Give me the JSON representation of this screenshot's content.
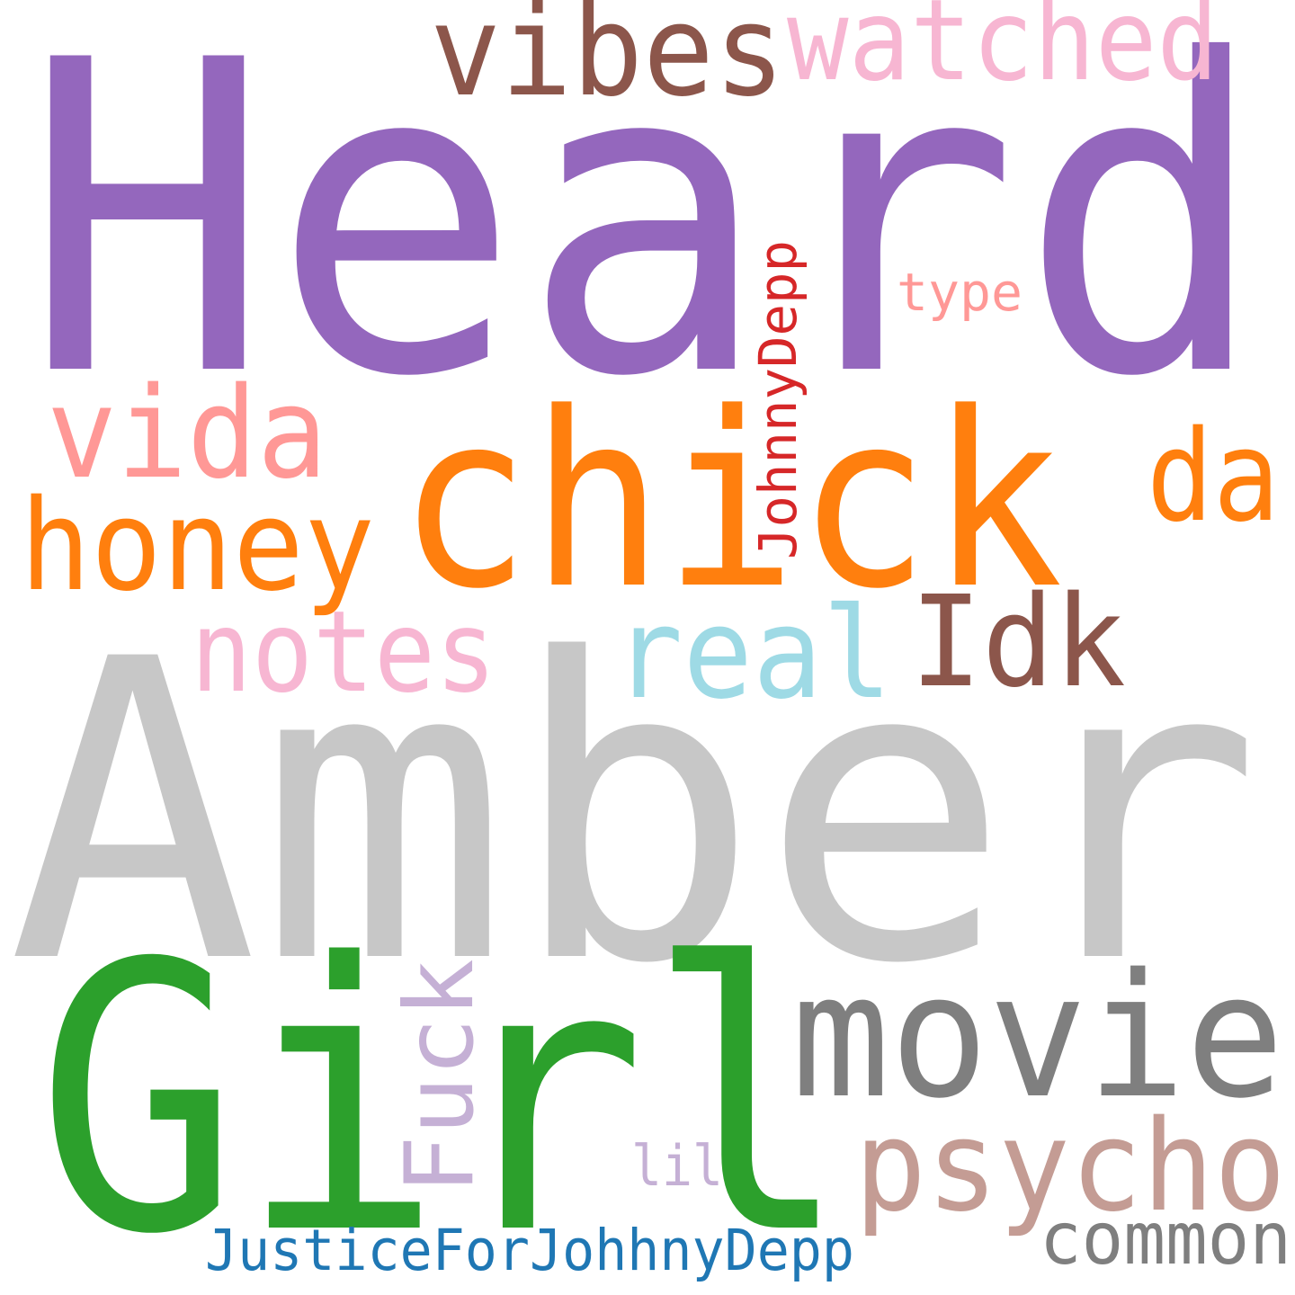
{
  "words": [
    {
      "key": "heard",
      "text": "Heard",
      "color": "#9467bd"
    },
    {
      "key": "amber",
      "text": "Amber",
      "color": "#c7c7c7"
    },
    {
      "key": "girl",
      "text": "Girl",
      "color": "#2ca02c"
    },
    {
      "key": "chick",
      "text": "chick",
      "color": "#ff7f0e"
    },
    {
      "key": "movie",
      "text": "movie",
      "color": "#7f7f7f"
    },
    {
      "key": "vibes",
      "text": "vibes",
      "color": "#8c564b"
    },
    {
      "key": "watched",
      "text": "watched",
      "color": "#f7b6d2"
    },
    {
      "key": "vida",
      "text": "vida",
      "color": "#ff9896"
    },
    {
      "key": "honey",
      "text": "honey",
      "color": "#ff7f0e"
    },
    {
      "key": "da",
      "text": "da",
      "color": "#ff7f0e"
    },
    {
      "key": "idk",
      "text": "Idk",
      "color": "#8c564b"
    },
    {
      "key": "real",
      "text": "real",
      "color": "#9edae5"
    },
    {
      "key": "notes",
      "text": "notes",
      "color": "#f7b6d2"
    },
    {
      "key": "psycho",
      "text": "psycho",
      "color": "#c49c94"
    },
    {
      "key": "fuck",
      "text": "Fuck",
      "color": "#c5b0d5"
    },
    {
      "key": "johnnydepp",
      "text": "JohnnyDepp",
      "color": "#d62728"
    },
    {
      "key": "type",
      "text": "type",
      "color": "#ff9896"
    },
    {
      "key": "lil",
      "text": "lil",
      "color": "#c5b0d5"
    },
    {
      "key": "common",
      "text": "common",
      "color": "#7f7f7f"
    },
    {
      "key": "justice",
      "text": "JusticeForJohhnyDepp",
      "color": "#1f77b4"
    }
  ]
}
